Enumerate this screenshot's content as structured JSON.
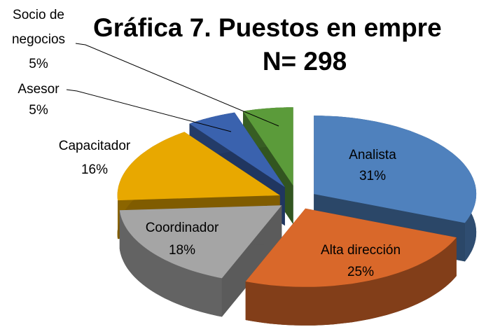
{
  "chart_data": {
    "type": "pie3d",
    "title": "Gráfica 7. Puestos en empre",
    "subtitle": "N= 298",
    "categories": [
      "Analista",
      "Alta dirección",
      "Coordinador",
      "Capacitador",
      "Asesor",
      "Socio de negocios"
    ],
    "values": [
      31,
      25,
      18,
      16,
      5,
      5
    ],
    "value_labels": [
      "31%",
      "25%",
      "18%",
      "16%",
      "5%",
      "5%"
    ],
    "colors": [
      "#4f81bd",
      "#d9682a",
      "#a5a5a5",
      "#e8a800",
      "#3a62ae",
      "#5b9b3a"
    ]
  }
}
